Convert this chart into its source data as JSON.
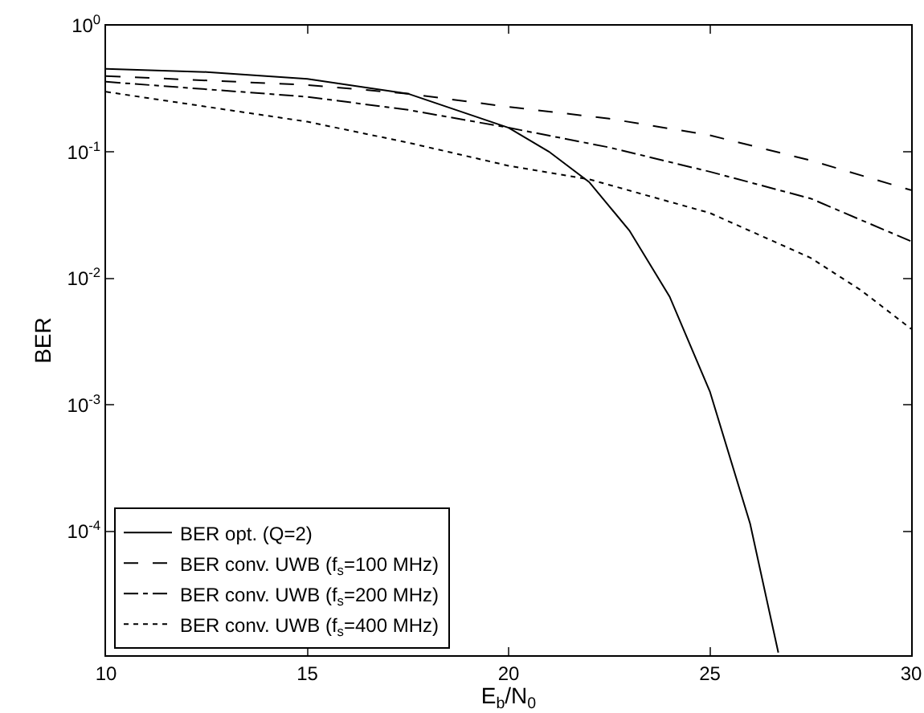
{
  "chart_data": {
    "type": "line",
    "xlabel": "E$_{b}$/N$_{0}$",
    "ylabel": "BER",
    "log": "y",
    "grid": false,
    "legend": "bottom left",
    "marker": "none",
    "xlim": [
      10,
      30
    ],
    "xticks": [
      10,
      15,
      20,
      25,
      30
    ],
    "ylim": [
      1.05e-05,
      1
    ],
    "yticks": [
      {
        "value": 1,
        "label": "10$^{0}$"
      },
      {
        "value": 0.1,
        "label": "10$^{-1}$"
      },
      {
        "value": 0.01,
        "label": "10$^{-2}$"
      },
      {
        "value": 0.001,
        "label": "10$^{-3}$"
      },
      {
        "value": 0.0001,
        "label": "10$^{-4}$"
      }
    ],
    "series": [
      {
        "name": "BER opt. (Q=2)",
        "color": "#000000",
        "line_style": "solid",
        "x": [
          10,
          12.5,
          15,
          17.5,
          20,
          21,
          22,
          23,
          24,
          25,
          26,
          26.7
        ],
        "values": [
          0.455,
          0.43,
          0.38,
          0.29,
          0.156,
          0.101,
          0.058,
          0.024,
          0.0072,
          0.00128,
          0.000115,
          1.1e-05
        ]
      },
      {
        "name": "BER conv. UWB (f$_{s}$=100 MHz)",
        "color": "#000000",
        "line_style": "dashed",
        "x": [
          10,
          15,
          17.5,
          20,
          22.5,
          25,
          27.5,
          30
        ],
        "values": [
          0.4,
          0.34,
          0.29,
          0.228,
          0.184,
          0.136,
          0.086,
          0.05
        ]
      },
      {
        "name": "BER conv. UWB (f$_{s}$=200 MHz)",
        "color": "#000000",
        "line_style": "dashdot",
        "x": [
          10,
          15,
          17.5,
          20,
          22.5,
          25,
          27.5,
          30
        ],
        "values": [
          0.36,
          0.274,
          0.216,
          0.156,
          0.109,
          0.07,
          0.043,
          0.0197
        ]
      },
      {
        "name": "BER conv. UWB (f$_{s}$=400 MHz)",
        "color": "#000000",
        "line_style": "dotted",
        "x": [
          10,
          15,
          17.5,
          20,
          22,
          25,
          27.5,
          28.75,
          30
        ],
        "values": [
          0.3,
          0.174,
          0.119,
          0.078,
          0.061,
          0.033,
          0.0146,
          0.0081,
          0.004
        ]
      }
    ]
  }
}
